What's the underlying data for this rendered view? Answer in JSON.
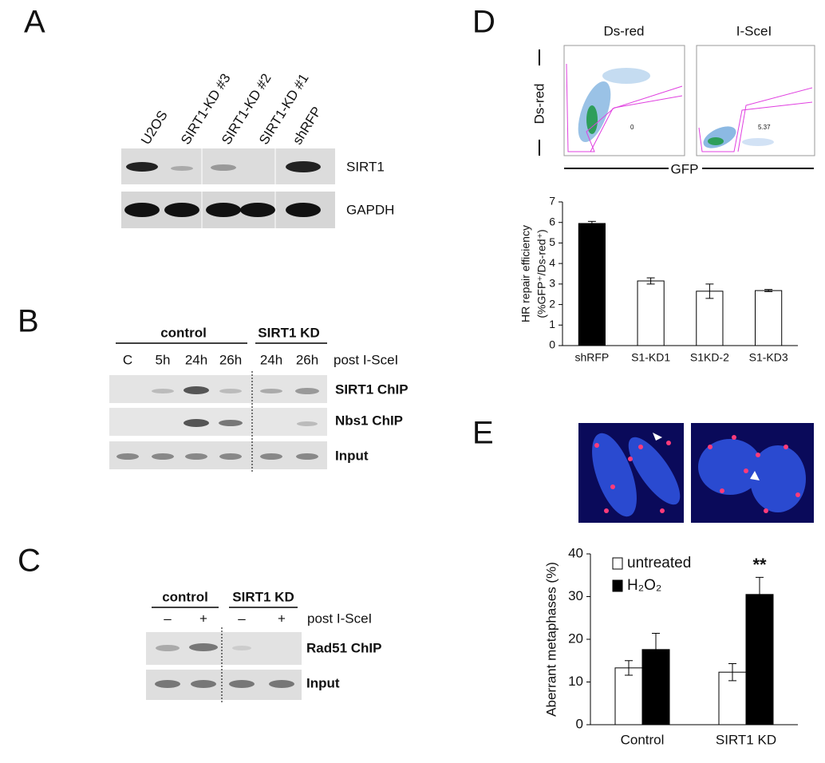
{
  "panels": [
    "A",
    "B",
    "C",
    "D",
    "E"
  ],
  "panel_a": {
    "lanes": [
      "U2OS",
      "SIRT1-KD  #3",
      "SIRT1-KD #2",
      "SIRT1-KD #1",
      "shRFP"
    ],
    "blots": [
      "SIRT1",
      "GAPDH"
    ]
  },
  "panel_b": {
    "groups": [
      "control",
      "SIRT1 KD"
    ],
    "lanes": [
      "C",
      "5h",
      "24h",
      "26h",
      "24h",
      "26h"
    ],
    "treatment": "post I-SceI",
    "blots": [
      "SIRT1 ChIP",
      "Nbs1 ChIP",
      "Input"
    ]
  },
  "panel_c": {
    "groups": [
      "control",
      "SIRT1 KD"
    ],
    "lanes": [
      "–",
      "+",
      "–",
      "+"
    ],
    "treatment": "post I-SceI",
    "blots": [
      "Rad51 ChIP",
      "Input"
    ]
  },
  "panel_d_flow": {
    "titles": [
      "Ds-red",
      "I-SceI"
    ],
    "y_label": "Ds-red",
    "x_label": "GFP",
    "gate_values": [
      0,
      5.37
    ]
  },
  "chart_data": [
    {
      "type": "bar",
      "y_label": [
        "HR repair efficiency",
        "(%GFP⁺/Ds-red⁺)"
      ],
      "categories": [
        "shRFP",
        "S1-KD1",
        "S1KD-2",
        "S1-KD3"
      ],
      "values": [
        5.95,
        3.15,
        2.65,
        2.68
      ],
      "errors": [
        0.1,
        0.15,
        0.35,
        0.05
      ],
      "colors": [
        "#000000",
        "#ffffff",
        "#ffffff",
        "#ffffff"
      ],
      "ylim": [
        0,
        7
      ],
      "yticks": [
        0,
        1,
        2,
        3,
        4,
        5,
        6,
        7
      ]
    },
    {
      "type": "grouped_bar",
      "y_label": "Aberrant metaphases (%)",
      "categories": [
        "Control",
        "SIRT1 KD"
      ],
      "series": [
        {
          "name": "untreated",
          "color": "#ffffff",
          "values": [
            13.3,
            12.3
          ],
          "errors": [
            1.7,
            2.0
          ]
        },
        {
          "name": "H₂O₂",
          "color": "#000000",
          "values": [
            17.6,
            30.5
          ],
          "errors": [
            3.8,
            4.0
          ]
        }
      ],
      "annotation": "**",
      "ylim": [
        0,
        40
      ],
      "yticks": [
        0,
        10,
        20,
        30,
        40
      ]
    }
  ]
}
